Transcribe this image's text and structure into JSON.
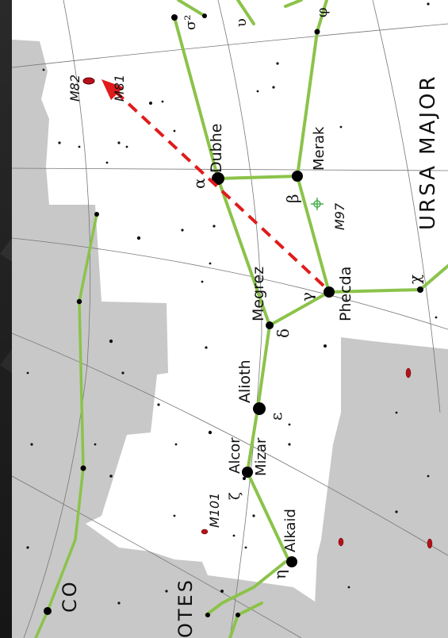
{
  "constellations": {
    "ursa_major": "URSA MAJOR",
    "bootes_partial": "OTES",
    "draco_partial": "CO"
  },
  "stars": {
    "dubhe": "Dubhe",
    "merak": "Merak",
    "phecda": "Phecda",
    "megrez": "Megrez",
    "alioth": "Alioth",
    "mizar": "Mizar",
    "alcor": "Alcor",
    "alkaid": "Alkaid"
  },
  "greek": {
    "alpha": "α",
    "beta": "β",
    "gamma": "γ",
    "delta": "δ",
    "epsilon": "ε",
    "zeta": "ζ",
    "eta": "η",
    "upsilon": "υ",
    "chi": "χ",
    "sigma2": "σ²",
    "phi": "φ"
  },
  "deep_sky": {
    "m81": "M81",
    "m82": "M82",
    "m97": "M97",
    "m101": "M101"
  },
  "colors": {
    "stick_figure": "#8bc34a",
    "pointer_arrow": "#e11b1b",
    "galaxy": "#b3121b",
    "sky_region": "#ffffff",
    "outside_region": "#c8c8c8"
  }
}
